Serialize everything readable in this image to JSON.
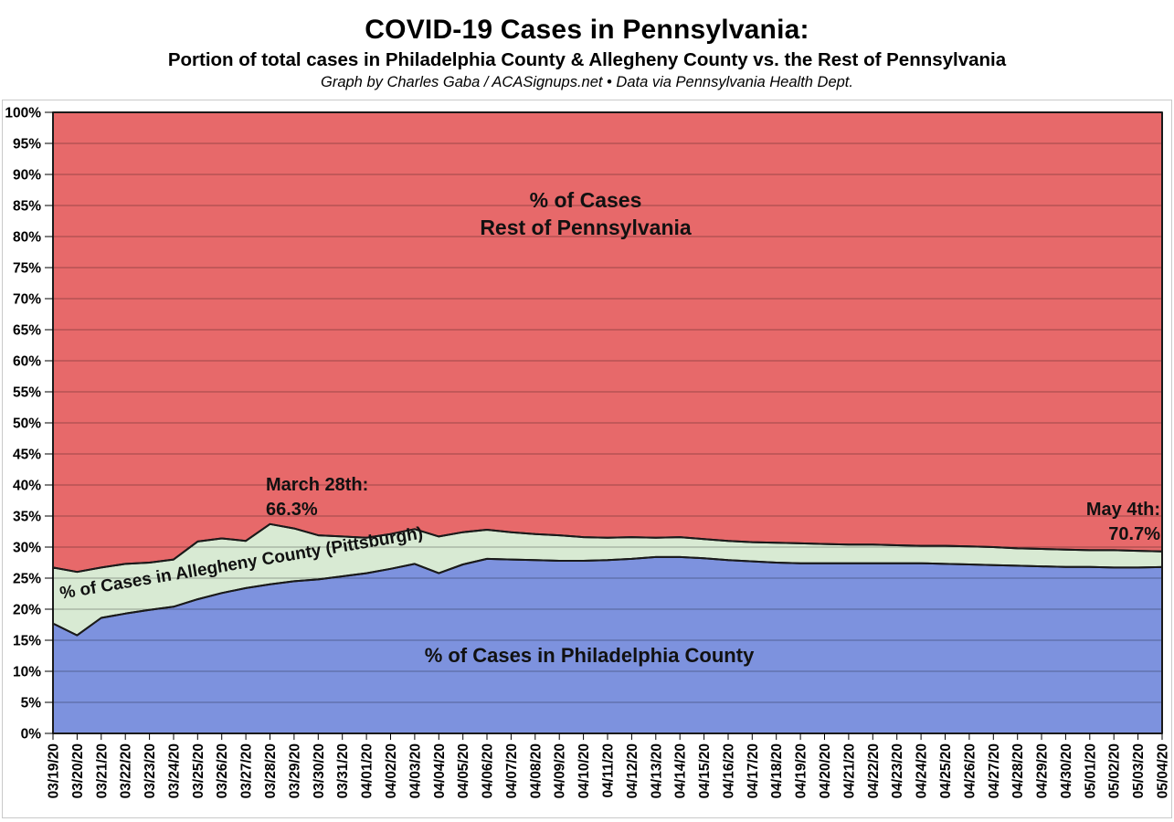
{
  "header": {
    "title": "COVID-19 Cases in Pennsylvania:",
    "subtitle": "Portion of total cases in Philadelphia County & Allegheny County vs. the Rest of Pennsylvania",
    "attribution": "Graph by Charles Gaba / ACASignups.net  •  Data via Pennsylvania Health Dept."
  },
  "labels": {
    "rest": "% of Cases\nRest of Pennsylvania",
    "allegheny": "% of Cases in Allegheny County (Pittsburgh)",
    "philadelphia": "% of Cases in Philadelphia County"
  },
  "annotations": {
    "march28": "March 28th:\n66.3%",
    "may4": "May 4th:\n70.7%"
  },
  "chart_data": {
    "type": "area",
    "stacked": true,
    "title": "COVID-19 Cases in Pennsylvania:",
    "xlabel": "",
    "ylabel": "",
    "ylim": [
      0,
      100
    ],
    "ytick_step": 5,
    "ytick_format": "percent",
    "grid": true,
    "legend_position": "in-plot-labels",
    "x": [
      "03/19/20",
      "03/20/20",
      "03/21/20",
      "03/22/20",
      "03/23/20",
      "03/24/20",
      "03/25/20",
      "03/26/20",
      "03/27/20",
      "03/28/20",
      "03/29/20",
      "03/30/20",
      "03/31/20",
      "04/01/20",
      "04/02/20",
      "04/03/20",
      "04/04/20",
      "04/05/20",
      "04/06/20",
      "04/07/20",
      "04/08/20",
      "04/09/20",
      "04/10/20",
      "04/11/20",
      "04/12/20",
      "04/13/20",
      "04/14/20",
      "04/15/20",
      "04/16/20",
      "04/17/20",
      "04/18/20",
      "04/19/20",
      "04/20/20",
      "04/21/20",
      "04/22/20",
      "04/23/20",
      "04/24/20",
      "04/25/20",
      "04/26/20",
      "04/27/20",
      "04/28/20",
      "04/29/20",
      "04/30/20",
      "05/01/20",
      "05/02/20",
      "05/03/20",
      "05/04/20"
    ],
    "series": [
      {
        "name": "% of Cases in Philadelphia County",
        "color": "#7d92de",
        "values": [
          17.7,
          15.8,
          18.6,
          19.3,
          19.9,
          20.4,
          21.6,
          22.6,
          23.4,
          24.0,
          24.5,
          24.8,
          25.3,
          25.8,
          26.5,
          27.3,
          25.8,
          27.2,
          28.1,
          28.0,
          27.9,
          27.8,
          27.8,
          27.9,
          28.1,
          28.4,
          28.4,
          28.2,
          27.9,
          27.7,
          27.5,
          27.4,
          27.4,
          27.4,
          27.4,
          27.4,
          27.4,
          27.3,
          27.2,
          27.1,
          27.0,
          26.9,
          26.8,
          26.8,
          26.7,
          26.7,
          26.8
        ]
      },
      {
        "name": "% of Cases in Allegheny County (Pittsburgh)",
        "color": "#d8ead3",
        "values": [
          9.0,
          10.2,
          8.1,
          8.0,
          7.6,
          7.6,
          9.3,
          8.8,
          7.6,
          9.7,
          8.5,
          7.1,
          6.4,
          5.7,
          5.6,
          5.6,
          5.9,
          5.2,
          4.7,
          4.4,
          4.2,
          4.1,
          3.8,
          3.6,
          3.5,
          3.1,
          3.2,
          3.1,
          3.1,
          3.1,
          3.2,
          3.2,
          3.1,
          3.0,
          3.0,
          2.9,
          2.8,
          2.9,
          2.9,
          2.9,
          2.8,
          2.8,
          2.8,
          2.7,
          2.8,
          2.7,
          2.5
        ]
      },
      {
        "name": "% of Cases Rest of Pennsylvania",
        "color": "#e7696a",
        "values": [
          73.3,
          74.0,
          73.3,
          72.7,
          72.5,
          72.0,
          69.1,
          68.6,
          69.0,
          66.3,
          67.0,
          68.1,
          68.3,
          68.5,
          67.9,
          67.1,
          68.3,
          67.6,
          67.2,
          67.6,
          67.9,
          68.1,
          68.4,
          68.5,
          68.4,
          68.5,
          68.4,
          68.7,
          69.0,
          69.2,
          69.3,
          69.4,
          69.5,
          69.6,
          69.6,
          69.7,
          69.8,
          69.8,
          69.9,
          70.0,
          70.2,
          70.3,
          70.4,
          70.5,
          70.5,
          70.6,
          70.7
        ]
      }
    ],
    "annotated_points": [
      {
        "x": "03/28/20",
        "text": "March 28th: 66.3%",
        "series": "% of Cases Rest of Pennsylvania",
        "value": 66.3
      },
      {
        "x": "05/04/20",
        "text": "May 4th: 70.7%",
        "series": "% of Cases Rest of Pennsylvania",
        "value": 70.7
      }
    ],
    "style": {
      "boundary_stroke": "#1a1a1a",
      "boundary_width": 2,
      "gridline_color": "rgba(0,0,0,0.32)"
    }
  }
}
